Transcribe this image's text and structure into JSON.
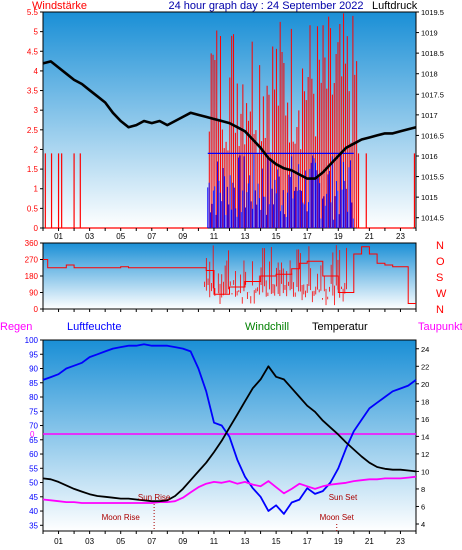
{
  "header": {
    "left_label": "Windstärke",
    "title": "24 hour graph day : 24 September 2022",
    "right_label": "Luftdruck"
  },
  "colors": {
    "panel_top": "#1a8fd6",
    "panel_bottom": "#ffffff",
    "wind": "#ff0000",
    "gust": "#0000ff",
    "pressure": "#000000",
    "direction": "#ff0000",
    "humidity": "#0000ff",
    "temperature": "#000000",
    "dewpoint": "#ff00ff",
    "rain": "#ff00ff",
    "astro": "#aa0000"
  },
  "x_ticks": [
    "01",
    "03",
    "05",
    "07",
    "09",
    "11",
    "13",
    "15",
    "17",
    "19",
    "21",
    "23"
  ],
  "chart_data": [
    {
      "type": "line",
      "xlim": [
        0,
        24
      ],
      "y_left_ticks": [
        "0",
        "0.5",
        "1",
        "1.5",
        "2",
        "2.5",
        "3",
        "3.5",
        "4",
        "4.5",
        "5",
        "5.5"
      ],
      "y_right_ticks": [
        "1014.5",
        "1015",
        "1015.5",
        "1016",
        "1016.5",
        "1017",
        "1017.5",
        "1018",
        "1018.5",
        "1019",
        "1019.5"
      ],
      "ylim_left": [
        0,
        5.5
      ],
      "ylim_right": [
        1014.25,
        1019.5
      ],
      "series": [
        {
          "key": "pressure",
          "x": [
            0,
            0.5,
            1,
            1.5,
            2,
            2.5,
            3,
            3.5,
            4,
            4.5,
            5,
            5.5,
            6,
            6.5,
            7,
            7.5,
            8,
            8.5,
            9,
            9.5,
            10,
            10.5,
            11,
            11.5,
            12,
            12.5,
            13,
            13.5,
            14,
            14.5,
            15,
            15.5,
            16,
            16.5,
            17,
            17.5,
            18,
            18.5,
            19,
            19.5,
            20,
            20.5,
            21,
            21.5,
            22,
            22.5,
            23,
            23.5,
            24
          ],
          "y": [
            1018.25,
            1018.3,
            1018.15,
            1018.0,
            1017.85,
            1017.75,
            1017.6,
            1017.45,
            1017.3,
            1017.05,
            1016.85,
            1016.7,
            1016.75,
            1016.85,
            1016.8,
            1016.85,
            1016.75,
            1016.85,
            1016.95,
            1017.05,
            1017.0,
            1016.95,
            1016.9,
            1016.85,
            1016.8,
            1016.7,
            1016.6,
            1016.4,
            1016.2,
            1015.95,
            1015.8,
            1015.7,
            1015.65,
            1015.55,
            1015.45,
            1015.45,
            1015.6,
            1015.8,
            1016.0,
            1016.2,
            1016.3,
            1016.4,
            1016.45,
            1016.5,
            1016.55,
            1016.55,
            1016.6,
            1016.65,
            1016.7
          ]
        }
      ]
    },
    {
      "type": "line",
      "xlim": [
        0,
        24
      ],
      "y_left_ticks": [
        "0",
        "90",
        "180",
        "270",
        "360"
      ],
      "y_right_ticks": [
        "N",
        "W",
        "S",
        "O",
        "N"
      ],
      "ylim": [
        0,
        360
      ],
      "series": [
        {
          "key": "direction",
          "x": [
            0,
            0.3,
            1,
            1.5,
            2,
            3,
            4,
            4.8,
            5,
            5.5,
            6,
            7,
            7.5,
            8,
            8.5,
            9,
            9.5,
            10,
            10.5,
            11,
            12,
            13,
            14,
            15,
            16,
            16.5,
            17,
            18,
            19,
            20,
            20.5,
            21,
            21.5,
            22,
            22.5,
            23,
            23.5,
            24
          ],
          "y": [
            270,
            225,
            225,
            240,
            225,
            225,
            225,
            225,
            230,
            225,
            225,
            225,
            225,
            225,
            225,
            225,
            225,
            225,
            210,
            80,
            120,
            150,
            180,
            190,
            220,
            250,
            260,
            180,
            90,
            300,
            340,
            300,
            250,
            240,
            230,
            230,
            30,
            30
          ]
        }
      ]
    },
    {
      "type": "line",
      "xlim": [
        0,
        24
      ],
      "y_left_ticks": [
        "35",
        "40",
        "45",
        "50",
        "55",
        "60",
        "65",
        "70",
        "75",
        "80",
        "85",
        "90",
        "95",
        "100"
      ],
      "y_right_ticks": [
        "4",
        "6",
        "8",
        "10",
        "12",
        "14",
        "16",
        "18",
        "20",
        "22",
        "24"
      ],
      "ylim_left": [
        33,
        100
      ],
      "ylim_right": [
        3.2,
        25
      ],
      "rain_axis_value": "0",
      "annotations": [
        {
          "label": "Sun Rise",
          "x": 7.15
        },
        {
          "label": "Moon Rise",
          "x": 5.0
        },
        {
          "label": "Sun Set",
          "x": 19.3
        },
        {
          "label": "Moon Set",
          "x": 18.9
        }
      ],
      "series": [
        {
          "key": "humidity",
          "name": "Luftfeuchte",
          "x": [
            0,
            0.5,
            1,
            1.5,
            2,
            2.5,
            3,
            3.5,
            4,
            4.5,
            5,
            5.5,
            6,
            6.5,
            7,
            7.5,
            8,
            8.5,
            9,
            9.5,
            10,
            10.5,
            11,
            11.5,
            12,
            12.5,
            13,
            13.5,
            14,
            14.5,
            15,
            15.5,
            16,
            16.5,
            17,
            17.5,
            18,
            18.5,
            19,
            19.5,
            20,
            20.5,
            21,
            21.5,
            22,
            22.5,
            23,
            23.5,
            24
          ],
          "y": [
            86,
            87,
            88,
            90,
            91,
            92,
            94,
            95,
            96,
            97,
            97.5,
            98,
            98,
            98.5,
            98,
            98,
            98,
            97.5,
            97,
            96,
            90,
            82,
            71,
            70,
            66,
            58,
            52,
            48,
            45,
            40,
            42,
            39,
            43,
            44,
            48,
            46,
            47,
            50,
            55,
            62,
            68,
            72,
            76,
            78,
            80,
            82,
            83,
            84,
            86
          ]
        },
        {
          "key": "temperature",
          "name": "Temperatur",
          "x": [
            0,
            0.5,
            1,
            1.5,
            2,
            2.5,
            3,
            3.5,
            4,
            4.5,
            5,
            5.5,
            6,
            6.5,
            7,
            7.5,
            8,
            8.5,
            9,
            9.5,
            10,
            10.5,
            11,
            11.5,
            12,
            12.5,
            13,
            13.5,
            14,
            14.5,
            15,
            15.5,
            16,
            16.5,
            17,
            17.5,
            18,
            18.5,
            19,
            19.5,
            20,
            20.5,
            21,
            21.5,
            22,
            22.5,
            23,
            23.5,
            24
          ],
          "y": [
            9.2,
            9.1,
            8.8,
            8.4,
            8.0,
            7.7,
            7.4,
            7.2,
            7.1,
            7.0,
            6.9,
            6.9,
            6.8,
            6.7,
            6.6,
            6.6,
            6.7,
            7.2,
            8.0,
            9.0,
            10.0,
            11.0,
            12.2,
            13.5,
            15.0,
            16.5,
            18.0,
            19.5,
            20.5,
            22.0,
            20.8,
            20.5,
            19.5,
            18.5,
            17.5,
            16.8,
            15.8,
            15.0,
            14.2,
            13.3,
            12.5,
            11.7,
            11.0,
            10.5,
            10.3,
            10.2,
            10.2,
            10.1,
            10.0
          ]
        },
        {
          "key": "dewpoint",
          "name": "Taupunkt",
          "x": [
            0,
            0.5,
            1,
            1.5,
            2,
            2.5,
            3,
            3.5,
            4,
            4.5,
            5,
            5.5,
            6,
            6.5,
            7,
            7.5,
            8,
            8.5,
            9,
            9.5,
            10,
            10.5,
            11,
            11.5,
            12,
            12.5,
            13,
            13.5,
            14,
            14.5,
            15,
            15.5,
            16,
            16.5,
            17,
            17.5,
            18,
            18.5,
            19,
            19.5,
            20,
            20.5,
            21,
            21.5,
            22,
            22.5,
            23,
            23.5,
            24
          ],
          "y": [
            6.8,
            6.7,
            6.6,
            6.5,
            6.5,
            6.4,
            6.4,
            6.4,
            6.4,
            6.4,
            6.4,
            6.4,
            6.4,
            6.4,
            6.4,
            6.5,
            6.5,
            6.6,
            7.0,
            7.6,
            8.2,
            8.6,
            8.8,
            8.7,
            8.9,
            8.6,
            8.8,
            8.5,
            8.3,
            8.9,
            8.2,
            7.5,
            8.0,
            8.6,
            8.3,
            8.0,
            8.3,
            8.5,
            8.6,
            8.7,
            8.9,
            9.0,
            9.1,
            9.1,
            9.2,
            9.2,
            9.2,
            9.3,
            9.4
          ]
        }
      ]
    }
  ],
  "panel3_header": {
    "rain": "Regen",
    "humidity": "Luftfeuchte",
    "windchill": "Windchill",
    "temperature": "Temperatur",
    "dewpoint": "Taupunkt"
  }
}
